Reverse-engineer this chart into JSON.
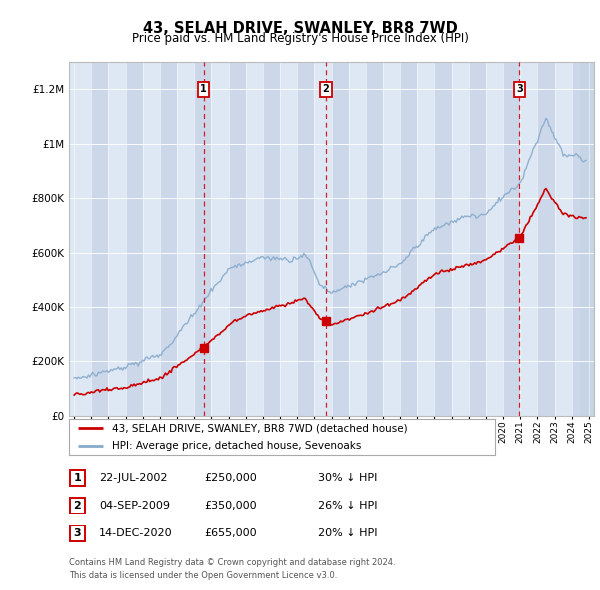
{
  "title": "43, SELAH DRIVE, SWANLEY, BR8 7WD",
  "subtitle": "Price paid vs. HM Land Registry's House Price Index (HPI)",
  "sale_label": "43, SELAH DRIVE, SWANLEY, BR8 7WD (detached house)",
  "hpi_label": "HPI: Average price, detached house, Sevenoaks",
  "sales": [
    {
      "date": 2002.55,
      "price": 250000,
      "label": "1"
    },
    {
      "date": 2009.67,
      "price": 350000,
      "label": "2"
    },
    {
      "date": 2020.95,
      "price": 655000,
      "label": "3"
    }
  ],
  "table_rows": [
    {
      "num": "1",
      "date": "22-JUL-2002",
      "price": "£250,000",
      "hpi": "30% ↓ HPI"
    },
    {
      "num": "2",
      "date": "04-SEP-2009",
      "price": "£350,000",
      "hpi": "26% ↓ HPI"
    },
    {
      "num": "3",
      "date": "14-DEC-2020",
      "price": "£655,000",
      "hpi": "20% ↓ HPI"
    }
  ],
  "footnote1": "Contains HM Land Registry data © Crown copyright and database right 2024.",
  "footnote2": "This data is licensed under the Open Government Licence v3.0.",
  "sale_color": "#cc0000",
  "hpi_color": "#88aacc",
  "vline_color": "#cc0000",
  "bg_color": "#dde8f4",
  "bg_alt_color": "#ccd8ea",
  "hatch_color": "#c5d5e5",
  "ylim": [
    0,
    1300000
  ],
  "xlim_start": 1994.7,
  "xlim_end": 2025.3,
  "yticks": [
    0,
    200000,
    400000,
    600000,
    800000,
    1000000,
    1200000
  ],
  "xticks": [
    1995,
    1996,
    1997,
    1998,
    1999,
    2000,
    2001,
    2002,
    2003,
    2004,
    2005,
    2006,
    2007,
    2008,
    2009,
    2010,
    2011,
    2012,
    2013,
    2014,
    2015,
    2016,
    2017,
    2018,
    2019,
    2020,
    2021,
    2022,
    2023,
    2024,
    2025
  ]
}
